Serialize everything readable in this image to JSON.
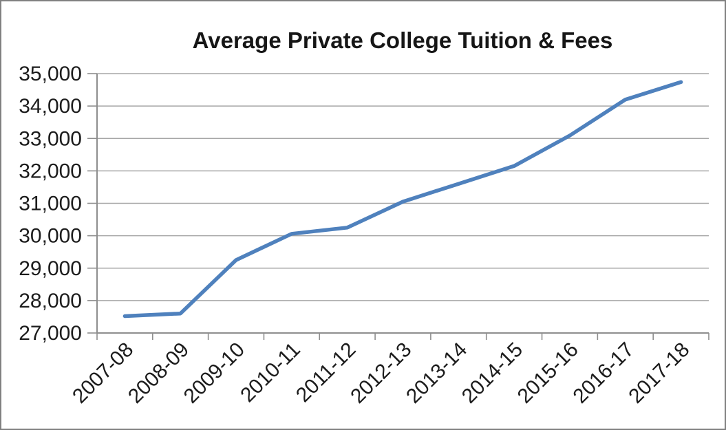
{
  "window": {
    "background": "#FFFFFF",
    "border_color": "#808080"
  },
  "chart_data": {
    "type": "line",
    "title": "Average Private College Tuition & Fees",
    "categories": [
      "2007-08",
      "2008-09",
      "2009-10",
      "2010-11",
      "2011-12",
      "2012-13",
      "2013-14",
      "2014-15",
      "2015-16",
      "2016-17",
      "2017-18"
    ],
    "series": [
      {
        "values": [
          27520,
          27600,
          29250,
          30060,
          30250,
          31050,
          31600,
          32150,
          33090,
          34200,
          34740
        ]
      }
    ],
    "xlabel": "",
    "ylabel": "",
    "ylim": [
      27000,
      35000
    ],
    "ytick_step": 1000,
    "ytick_labels": [
      "27,000",
      "28,000",
      "29,000",
      "30,000",
      "31,000",
      "32,000",
      "33,000",
      "34,000",
      "35,000"
    ],
    "grid": true,
    "legend_position": "none",
    "colors": {
      "line": "#4F81BD",
      "gridline": "#A6A6A6",
      "axis": "#8E8E8E",
      "title_text": "#161616",
      "tick_text": "#1C1C1C"
    }
  }
}
